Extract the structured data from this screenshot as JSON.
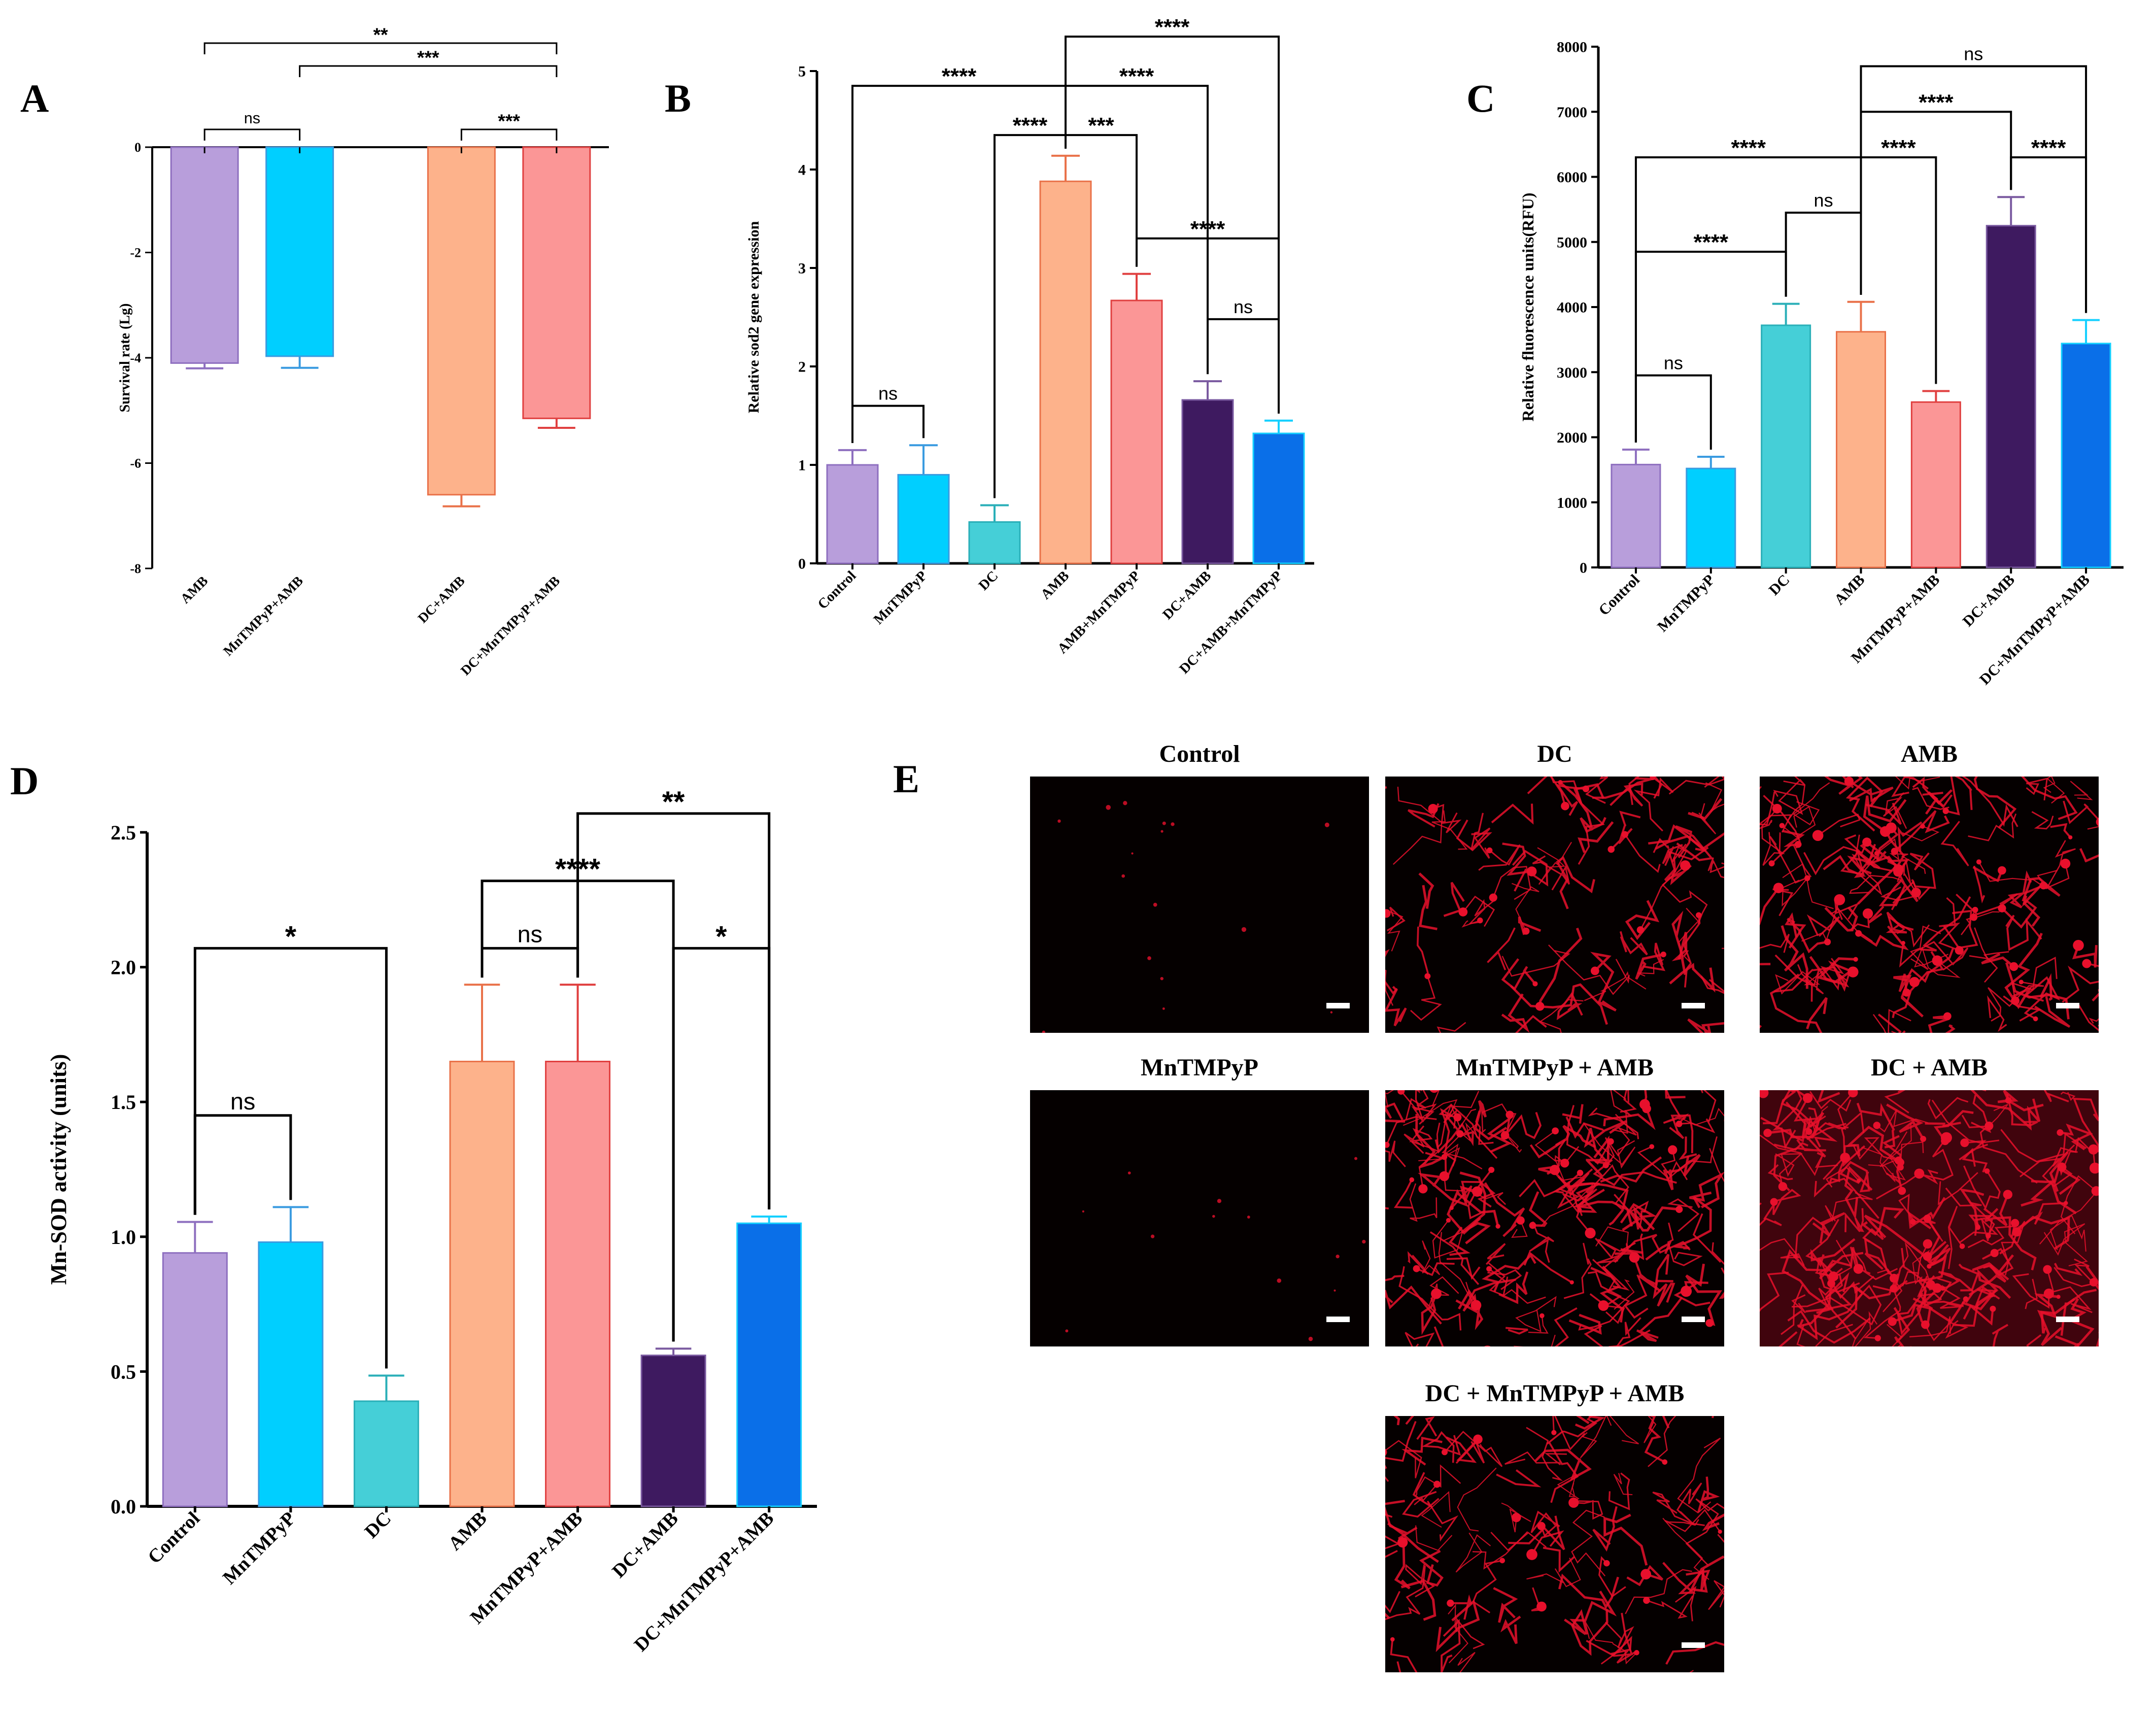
{
  "colors": {
    "lavender": "#B89EDB",
    "cyan": "#00CFFF",
    "turquoise": "#45CFD7",
    "peach": "#FDB28B",
    "salmon": "#FB9696",
    "purple": "#3E1A60",
    "blue": "#0A6FE8",
    "blue_edge": "#14D0FF",
    "fluor_red": "#E8102C",
    "micro_bg": "#050000"
  },
  "chart_data": [
    {
      "panel": "A",
      "type": "bar",
      "ylabel": "Survival rate (Lg)",
      "ylim": [
        -8,
        0
      ],
      "yticks": [
        0,
        -2,
        -4,
        -6,
        -8
      ],
      "ytick_labels": [
        "0",
        "-2",
        "-4",
        "-6",
        "-8"
      ],
      "categories": [
        "AMB",
        "MnTMPyP+AMB",
        "DC+AMB",
        "DC+MnTMPyP+AMB"
      ],
      "cat_slots": [
        0,
        1,
        2.7,
        3.7
      ],
      "values": [
        -4.1,
        -3.97,
        -6.6,
        -5.15
      ],
      "errors": [
        0.1,
        0.22,
        0.22,
        0.18
      ],
      "colors": [
        "#B89EDB",
        "#00CFFF",
        "#FDB28B",
        "#FB9696"
      ],
      "err_colors": [
        "#8E6FBF",
        "#3A9BE0",
        "#E9724A",
        "#E04040"
      ],
      "sig": [
        {
          "from": 0,
          "to": 1,
          "label": "ns",
          "level": 1
        },
        {
          "from": 2,
          "to": 3,
          "label": "***",
          "level": 1
        },
        {
          "from": 1,
          "to": 3,
          "label": "***",
          "level": 2
        },
        {
          "from": 0,
          "to": 3,
          "label": "**",
          "level": 3
        }
      ]
    },
    {
      "panel": "B",
      "type": "bar",
      "ylabel": "Relative sod2 gene expression",
      "ylim": [
        0,
        5
      ],
      "yticks": [
        0,
        1,
        2,
        3,
        4,
        5
      ],
      "ytick_labels": [
        "0",
        "1",
        "2",
        "3",
        "4",
        "5"
      ],
      "categories": [
        "Control",
        "MnTMPyP",
        "DC",
        "AMB",
        "AMB+MnTMPyP",
        "DC+AMB",
        "DC+AMB+MnTMPyP"
      ],
      "values": [
        1.0,
        0.9,
        0.42,
        3.88,
        2.67,
        1.66,
        1.32
      ],
      "errors": [
        0.15,
        0.3,
        0.17,
        0.26,
        0.27,
        0.19,
        0.13
      ],
      "colors": [
        "#B89EDB",
        "#00CFFF",
        "#45CFD7",
        "#FDB28B",
        "#FB9696",
        "#3E1A60",
        "#0A6FE8"
      ],
      "err_colors": [
        "#8E6FBF",
        "#3A9BE0",
        "#2AAFB8",
        "#E9724A",
        "#E04040",
        "#7A5AA0",
        "#14D0FF"
      ],
      "sig": [
        {
          "from": 0,
          "to": 1,
          "label": "ns",
          "value": 1.6
        },
        {
          "from": 2,
          "to": 3,
          "label": "****",
          "value": 4.35
        },
        {
          "from": 3,
          "to": 4,
          "label": "***",
          "value": 4.35
        },
        {
          "from": 5,
          "to": 6,
          "label": "ns",
          "value": 2.48
        },
        {
          "from": 4,
          "to": 6,
          "label": "****",
          "value": 3.3
        },
        {
          "from": 0,
          "to": 3,
          "label": "****",
          "value": 4.85
        },
        {
          "from": 3,
          "to": 5,
          "label": "****",
          "value": 4.85
        },
        {
          "from": 3,
          "to": 6,
          "label": "****",
          "value": 5.35
        }
      ]
    },
    {
      "panel": "C",
      "type": "bar",
      "ylabel": "Relative fluorescence units(RFU)",
      "ylim": [
        0,
        8000
      ],
      "yticks": [
        0,
        1000,
        2000,
        3000,
        4000,
        5000,
        6000,
        7000,
        8000
      ],
      "ytick_labels": [
        "0",
        "1000",
        "2000",
        "3000",
        "4000",
        "5000",
        "6000",
        "7000",
        "8000"
      ],
      "categories": [
        "Control",
        "MnTMPyP",
        "DC",
        "AMB",
        "MnTMPyP+AMB",
        "DC+AMB",
        "DC+MnTMPyP+AMB"
      ],
      "values": [
        1580,
        1520,
        3720,
        3620,
        2540,
        5250,
        3440
      ],
      "errors": [
        230,
        180,
        330,
        460,
        170,
        440,
        360
      ],
      "colors": [
        "#B89EDB",
        "#00CFFF",
        "#45CFD7",
        "#FDB28B",
        "#FB9696",
        "#3E1A60",
        "#0A6FE8"
      ],
      "err_colors": [
        "#8E6FBF",
        "#3A9BE0",
        "#2AAFB8",
        "#E9724A",
        "#E04040",
        "#7A5AA0",
        "#14D0FF"
      ],
      "sig": [
        {
          "from": 0,
          "to": 1,
          "label": "ns",
          "value": 2950
        },
        {
          "from": 0,
          "to": 2,
          "label": "****",
          "value": 4850
        },
        {
          "from": 2,
          "to": 3,
          "label": "ns",
          "value": 5450
        },
        {
          "from": 0,
          "to": 3,
          "label": "****",
          "value": 6300
        },
        {
          "from": 3,
          "to": 4,
          "label": "****",
          "value": 6300
        },
        {
          "from": 5,
          "to": 6,
          "label": "****",
          "value": 6300
        },
        {
          "from": 3,
          "to": 5,
          "label": "****",
          "value": 7000
        },
        {
          "from": 3,
          "to": 6,
          "label": "ns",
          "value": 7700
        }
      ]
    },
    {
      "panel": "D",
      "type": "bar",
      "ylabel": "Mn-SOD activity (units)",
      "ylim": [
        0,
        2.5
      ],
      "yticks": [
        0,
        0.5,
        1.0,
        1.5,
        2.0,
        2.5
      ],
      "ytick_labels": [
        "0.0",
        "0.5",
        "1.0",
        "1.5",
        "2.0",
        "2.5"
      ],
      "categories": [
        "Control",
        "MnTMPyP",
        "DC",
        "AMB",
        "MnTMPyP+AMB",
        "DC+AMB",
        "DC+MnTMPyP+AMB"
      ],
      "values": [
        0.94,
        0.98,
        0.39,
        1.65,
        1.65,
        0.56,
        1.05
      ],
      "errors": [
        0.115,
        0.13,
        0.095,
        0.285,
        0.285,
        0.025,
        0.025
      ],
      "colors": [
        "#B89EDB",
        "#00CFFF",
        "#45CFD7",
        "#FDB28B",
        "#FB9696",
        "#3E1A60",
        "#0A6FE8"
      ],
      "err_colors": [
        "#8E6FBF",
        "#3A9BE0",
        "#2AAFB8",
        "#E9724A",
        "#E04040",
        "#7A5AA0",
        "#14D0FF"
      ],
      "sig": [
        {
          "from": 0,
          "to": 1,
          "label": "ns",
          "value": 1.45
        },
        {
          "from": 0,
          "to": 2,
          "label": "*",
          "value": 2.07
        },
        {
          "from": 3,
          "to": 4,
          "label": "ns",
          "value": 2.07
        },
        {
          "from": 5,
          "to": 6,
          "label": "*",
          "value": 2.07
        },
        {
          "from": 3,
          "to": 5,
          "label": "****",
          "value": 2.32
        },
        {
          "from": 4,
          "to": 6,
          "label": "**",
          "value": 2.57
        }
      ]
    }
  ],
  "panel_e": {
    "letter": "E",
    "images": [
      {
        "label": "Control",
        "density": 0.05
      },
      {
        "label": "DC",
        "density": 0.5
      },
      {
        "label": "AMB",
        "density": 0.8
      },
      {
        "label": "MnTMPyP",
        "density": 0.03
      },
      {
        "label": "MnTMPyP + AMB",
        "density": 0.9
      },
      {
        "label": "DC + AMB",
        "density": 1.0
      },
      {
        "label": "DC + MnTMPyP + AMB",
        "density": 0.6
      }
    ]
  }
}
